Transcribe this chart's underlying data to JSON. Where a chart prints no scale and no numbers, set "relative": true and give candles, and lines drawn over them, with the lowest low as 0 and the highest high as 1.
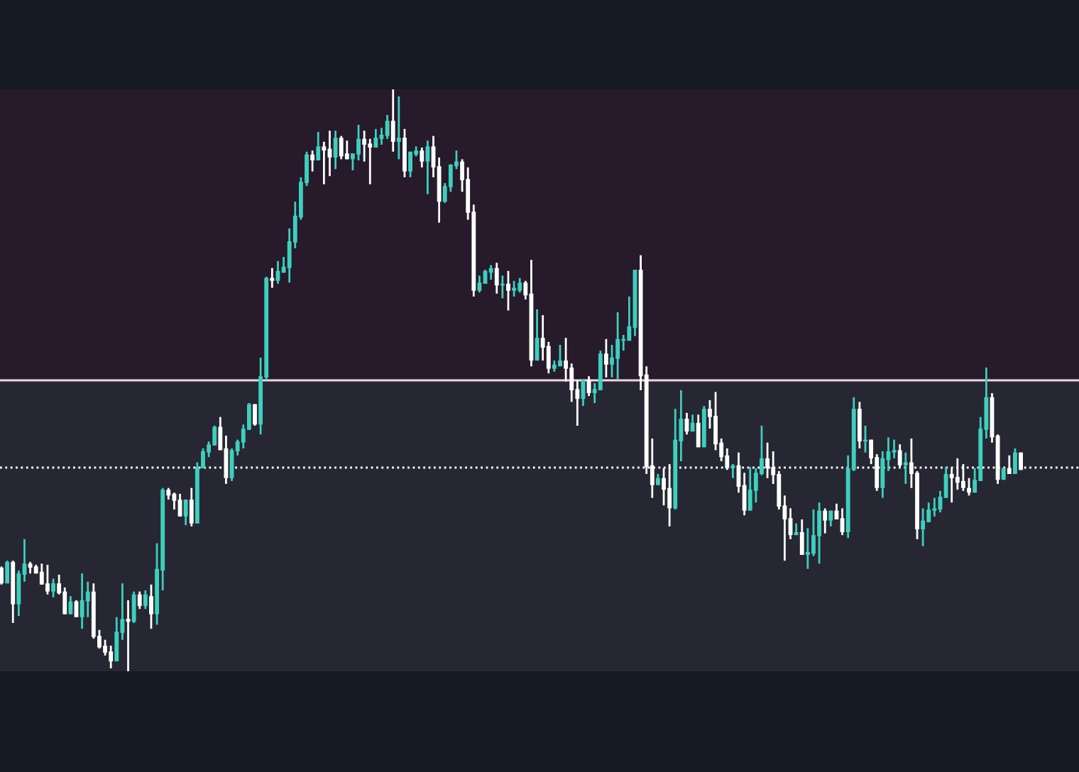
{
  "chart_data": {
    "type": "candlestick",
    "relative": true,
    "categories": [
      null,
      null,
      null,
      null,
      null,
      null,
      null,
      null,
      null,
      null,
      null,
      null,
      null,
      null,
      null,
      null,
      null,
      null,
      null,
      null,
      null,
      null,
      null,
      null,
      null,
      null,
      null,
      null,
      null,
      null,
      null,
      null,
      null,
      null,
      null,
      null,
      null,
      null,
      null,
      null,
      null,
      null,
      null,
      null,
      null,
      null,
      null,
      null,
      null,
      null,
      null,
      null,
      null,
      null,
      null,
      null,
      null,
      null,
      null,
      null,
      null,
      null,
      null,
      null,
      null,
      null,
      null,
      null,
      null,
      null,
      null,
      null,
      null,
      null,
      null,
      null,
      null,
      null,
      null,
      null,
      null,
      null,
      null,
      null,
      null,
      null,
      null,
      null,
      null,
      null,
      null,
      null,
      null,
      null,
      null,
      null,
      null,
      null,
      null,
      null,
      null,
      null,
      null,
      null,
      null,
      null,
      null,
      null,
      null,
      null,
      null,
      null,
      null,
      null,
      null,
      null,
      null,
      null,
      null,
      null,
      null,
      null,
      null,
      null,
      null,
      null,
      null,
      null,
      null,
      null,
      null,
      null,
      null,
      null,
      null,
      null,
      null,
      null,
      null,
      null,
      null,
      null,
      null,
      null,
      null,
      null,
      null,
      null,
      null,
      null,
      null,
      null,
      null,
      null,
      null,
      null,
      null,
      null,
      null,
      null,
      null,
      null,
      null,
      null,
      null,
      null,
      null,
      null,
      null,
      null,
      null,
      null,
      null,
      null,
      null,
      null,
      null,
      null
    ],
    "ohlc": [
      [
        0.178,
        0.18,
        0.149,
        0.151
      ],
      [
        0.151,
        0.19,
        0.151,
        0.188
      ],
      [
        0.188,
        0.19,
        0.083,
        0.115
      ],
      [
        0.115,
        0.173,
        0.095,
        0.168
      ],
      [
        0.166,
        0.227,
        0.154,
        0.185
      ],
      [
        0.185,
        0.188,
        0.168,
        0.178
      ],
      [
        0.18,
        0.183,
        0.168,
        0.168
      ],
      [
        0.171,
        0.185,
        0.149,
        0.149
      ],
      [
        0.151,
        0.183,
        0.132,
        0.137
      ],
      [
        0.137,
        0.159,
        0.127,
        0.151
      ],
      [
        0.151,
        0.166,
        0.132,
        0.134
      ],
      [
        0.137,
        0.144,
        0.098,
        0.098
      ],
      [
        0.098,
        0.129,
        0.098,
        0.12
      ],
      [
        0.12,
        0.122,
        0.093,
        0.093
      ],
      [
        0.093,
        0.168,
        0.073,
        0.122
      ],
      [
        0.12,
        0.154,
        0.093,
        0.137
      ],
      [
        0.137,
        0.151,
        0.056,
        0.059
      ],
      [
        0.061,
        0.071,
        0.039,
        0.041
      ],
      [
        0.044,
        0.054,
        0.027,
        0.032
      ],
      [
        0.034,
        0.044,
        0.005,
        0.017
      ],
      [
        0.017,
        0.093,
        0.017,
        0.068
      ],
      [
        0.066,
        0.151,
        0.054,
        0.09
      ],
      [
        0.09,
        0.122,
        0.0,
        0.085
      ],
      [
        0.085,
        0.137,
        0.083,
        0.132
      ],
      [
        0.132,
        0.137,
        0.107,
        0.112
      ],
      [
        0.112,
        0.139,
        0.107,
        0.132
      ],
      [
        0.129,
        0.149,
        0.073,
        0.098
      ],
      [
        0.098,
        0.22,
        0.08,
        0.176
      ],
      [
        0.173,
        0.315,
        0.139,
        0.312
      ],
      [
        0.312,
        0.315,
        0.295,
        0.302
      ],
      [
        0.305,
        0.307,
        0.278,
        0.293
      ],
      [
        0.295,
        0.305,
        0.266,
        0.266
      ],
      [
        0.266,
        0.295,
        0.251,
        0.295
      ],
      [
        0.295,
        0.315,
        0.249,
        0.254
      ],
      [
        0.254,
        0.359,
        0.254,
        0.351
      ],
      [
        0.349,
        0.383,
        0.349,
        0.378
      ],
      [
        0.376,
        0.395,
        0.368,
        0.39
      ],
      [
        0.388,
        0.422,
        0.388,
        0.42
      ],
      [
        0.42,
        0.437,
        0.38,
        0.38
      ],
      [
        0.383,
        0.405,
        0.322,
        0.332
      ],
      [
        0.332,
        0.383,
        0.327,
        0.38
      ],
      [
        0.378,
        0.398,
        0.371,
        0.395
      ],
      [
        0.393,
        0.424,
        0.383,
        0.417
      ],
      [
        0.415,
        0.461,
        0.415,
        0.459
      ],
      [
        0.459,
        0.459,
        0.422,
        0.424
      ],
      [
        0.424,
        0.539,
        0.407,
        0.507
      ],
      [
        0.505,
        0.678,
        0.502,
        0.676
      ],
      [
        0.676,
        0.693,
        0.659,
        0.671
      ],
      [
        0.671,
        0.705,
        0.666,
        0.688
      ],
      [
        0.685,
        0.712,
        0.685,
        0.695
      ],
      [
        0.693,
        0.761,
        0.668,
        0.739
      ],
      [
        0.737,
        0.807,
        0.727,
        0.783
      ],
      [
        0.78,
        0.849,
        0.776,
        0.841
      ],
      [
        0.839,
        0.893,
        0.834,
        0.888
      ],
      [
        0.888,
        0.895,
        0.859,
        0.878
      ],
      [
        0.878,
        0.927,
        0.878,
        0.902
      ],
      [
        0.902,
        0.91,
        0.837,
        0.895
      ],
      [
        0.898,
        0.929,
        0.851,
        0.883
      ],
      [
        0.883,
        0.929,
        0.863,
        0.917
      ],
      [
        0.917,
        0.92,
        0.88,
        0.885
      ],
      [
        0.89,
        0.912,
        0.88,
        0.88
      ],
      [
        0.88,
        0.89,
        0.861,
        0.89
      ],
      [
        0.888,
        0.939,
        0.878,
        0.915
      ],
      [
        0.915,
        0.929,
        0.876,
        0.905
      ],
      [
        0.907,
        0.915,
        0.837,
        0.9
      ],
      [
        0.9,
        0.932,
        0.9,
        0.917
      ],
      [
        0.915,
        0.934,
        0.905,
        0.922
      ],
      [
        0.92,
        0.956,
        0.915,
        0.946
      ],
      [
        0.946,
        1.0,
        0.893,
        0.91
      ],
      [
        0.91,
        0.988,
        0.88,
        0.917
      ],
      [
        0.917,
        0.932,
        0.849,
        0.859
      ],
      [
        0.859,
        0.893,
        0.849,
        0.893
      ],
      [
        0.888,
        0.902,
        0.885,
        0.895
      ],
      [
        0.895,
        0.9,
        0.866,
        0.876
      ],
      [
        0.876,
        0.912,
        0.82,
        0.902
      ],
      [
        0.902,
        0.92,
        0.849,
        0.866
      ],
      [
        0.868,
        0.883,
        0.771,
        0.807
      ],
      [
        0.807,
        0.839,
        0.805,
        0.834
      ],
      [
        0.832,
        0.871,
        0.824,
        0.871
      ],
      [
        0.868,
        0.895,
        0.863,
        0.876
      ],
      [
        0.876,
        0.88,
        0.824,
        0.844
      ],
      [
        0.846,
        0.866,
        0.776,
        0.788
      ],
      [
        0.79,
        0.802,
        0.644,
        0.654
      ],
      [
        0.654,
        0.68,
        0.651,
        0.668
      ],
      [
        0.666,
        0.69,
        0.666,
        0.688
      ],
      [
        0.685,
        0.698,
        0.673,
        0.693
      ],
      [
        0.693,
        0.702,
        0.649,
        0.663
      ],
      [
        0.663,
        0.68,
        0.641,
        0.666
      ],
      [
        0.666,
        0.688,
        0.62,
        0.654
      ],
      [
        0.654,
        0.671,
        0.644,
        0.659
      ],
      [
        0.654,
        0.676,
        0.651,
        0.668
      ],
      [
        0.668,
        0.671,
        0.639,
        0.646
      ],
      [
        0.649,
        0.707,
        0.524,
        0.534
      ],
      [
        0.534,
        0.622,
        0.534,
        0.573
      ],
      [
        0.573,
        0.612,
        0.534,
        0.556
      ],
      [
        0.559,
        0.566,
        0.512,
        0.52
      ],
      [
        0.52,
        0.534,
        0.515,
        0.527
      ],
      [
        0.524,
        0.561,
        0.524,
        0.534
      ],
      [
        0.534,
        0.573,
        0.498,
        0.52
      ],
      [
        0.522,
        0.529,
        0.463,
        0.483
      ],
      [
        0.485,
        0.5,
        0.422,
        0.468
      ],
      [
        0.468,
        0.502,
        0.456,
        0.5
      ],
      [
        0.5,
        0.507,
        0.473,
        0.478
      ],
      [
        0.478,
        0.495,
        0.461,
        0.485
      ],
      [
        0.483,
        0.551,
        0.483,
        0.546
      ],
      [
        0.546,
        0.571,
        0.505,
        0.527
      ],
      [
        0.527,
        0.561,
        0.505,
        0.539
      ],
      [
        0.537,
        0.617,
        0.502,
        0.571
      ],
      [
        0.568,
        0.578,
        0.551,
        0.571
      ],
      [
        0.568,
        0.644,
        0.568,
        0.593
      ],
      [
        0.59,
        0.69,
        0.576,
        0.69
      ],
      [
        0.69,
        0.715,
        0.483,
        0.507
      ],
      [
        0.51,
        0.524,
        0.339,
        0.351
      ],
      [
        0.354,
        0.4,
        0.298,
        0.32
      ],
      [
        0.32,
        0.339,
        0.32,
        0.332
      ],
      [
        0.332,
        0.349,
        0.285,
        0.312
      ],
      [
        0.315,
        0.356,
        0.249,
        0.28
      ],
      [
        0.28,
        0.451,
        0.278,
        0.398
      ],
      [
        0.395,
        0.483,
        0.361,
        0.434
      ],
      [
        0.434,
        0.444,
        0.407,
        0.412
      ],
      [
        0.412,
        0.441,
        0.412,
        0.427
      ],
      [
        0.427,
        0.441,
        0.385,
        0.385
      ],
      [
        0.385,
        0.456,
        0.385,
        0.451
      ],
      [
        0.451,
        0.466,
        0.417,
        0.437
      ],
      [
        0.439,
        0.48,
        0.38,
        0.39
      ],
      [
        0.393,
        0.4,
        0.361,
        0.368
      ],
      [
        0.371,
        0.383,
        0.346,
        0.349
      ],
      [
        0.349,
        0.356,
        0.332,
        0.354
      ],
      [
        0.354,
        0.376,
        0.307,
        0.317
      ],
      [
        0.32,
        0.341,
        0.268,
        0.276
      ],
      [
        0.276,
        0.351,
        0.276,
        0.312
      ],
      [
        0.31,
        0.349,
        0.29,
        0.341
      ],
      [
        0.339,
        0.422,
        0.337,
        0.366
      ],
      [
        0.366,
        0.393,
        0.332,
        0.349
      ],
      [
        0.351,
        0.378,
        0.322,
        0.337
      ],
      [
        0.339,
        0.344,
        0.278,
        0.283
      ],
      [
        0.285,
        0.302,
        0.19,
        0.261
      ],
      [
        0.263,
        0.28,
        0.227,
        0.234
      ],
      [
        0.234,
        0.254,
        0.234,
        0.239
      ],
      [
        0.239,
        0.261,
        0.2,
        0.2
      ],
      [
        0.2,
        0.246,
        0.176,
        0.205
      ],
      [
        0.202,
        0.278,
        0.198,
        0.234
      ],
      [
        0.232,
        0.29,
        0.185,
        0.276
      ],
      [
        0.276,
        0.28,
        0.237,
        0.259
      ],
      [
        0.259,
        0.276,
        0.249,
        0.276
      ],
      [
        0.276,
        0.288,
        0.261,
        0.261
      ],
      [
        0.263,
        0.28,
        0.234,
        0.239
      ],
      [
        0.239,
        0.371,
        0.229,
        0.349
      ],
      [
        0.346,
        0.471,
        0.344,
        0.451
      ],
      [
        0.451,
        0.463,
        0.383,
        0.395
      ],
      [
        0.395,
        0.422,
        0.376,
        0.398
      ],
      [
        0.398,
        0.398,
        0.356,
        0.366
      ],
      [
        0.368,
        0.373,
        0.31,
        0.315
      ],
      [
        0.315,
        0.378,
        0.298,
        0.366
      ],
      [
        0.363,
        0.402,
        0.344,
        0.378
      ],
      [
        0.376,
        0.398,
        0.366,
        0.38
      ],
      [
        0.38,
        0.39,
        0.351,
        0.354
      ],
      [
        0.354,
        0.376,
        0.322,
        0.359
      ],
      [
        0.359,
        0.4,
        0.315,
        0.339
      ],
      [
        0.341,
        0.344,
        0.227,
        0.244
      ],
      [
        0.244,
        0.28,
        0.215,
        0.259
      ],
      [
        0.256,
        0.29,
        0.256,
        0.278
      ],
      [
        0.276,
        0.298,
        0.266,
        0.28
      ],
      [
        0.278,
        0.31,
        0.273,
        0.3
      ],
      [
        0.298,
        0.351,
        0.298,
        0.339
      ],
      [
        0.339,
        0.349,
        0.29,
        0.332
      ],
      [
        0.334,
        0.366,
        0.312,
        0.324
      ],
      [
        0.327,
        0.356,
        0.31,
        0.315
      ],
      [
        0.315,
        0.332,
        0.302,
        0.307
      ],
      [
        0.307,
        0.349,
        0.307,
        0.329
      ],
      [
        0.327,
        0.437,
        0.327,
        0.417
      ],
      [
        0.415,
        0.522,
        0.4,
        0.471
      ],
      [
        0.471,
        0.478,
        0.393,
        0.402
      ],
      [
        0.405,
        0.407,
        0.322,
        0.329
      ],
      [
        0.329,
        0.349,
        0.329,
        0.349
      ],
      [
        0.349,
        0.371,
        0.339,
        0.339
      ],
      [
        0.339,
        0.383,
        0.339,
        0.376
      ],
      [
        0.376,
        0.376,
        0.346,
        0.346
      ]
    ],
    "colors": [
      "#ffffff",
      "#3ecfbe",
      "#ffffff",
      "#3ecfbe",
      "#3ecfbe",
      "#ffffff",
      "#ffffff",
      "#ffffff",
      "#ffffff",
      "#3ecfbe",
      "#ffffff",
      "#ffffff",
      "#3ecfbe",
      "#ffffff",
      "#3ecfbe",
      "#3ecfbe",
      "#ffffff",
      "#ffffff",
      "#ffffff",
      "#ffffff",
      "#3ecfbe",
      "#3ecfbe",
      "#ffffff",
      "#3ecfbe",
      "#ffffff",
      "#3ecfbe",
      "#ffffff",
      "#3ecfbe",
      "#3ecfbe",
      "#ffffff",
      "#ffffff",
      "#ffffff",
      "#3ecfbe",
      "#ffffff",
      "#3ecfbe",
      "#3ecfbe",
      "#3ecfbe",
      "#3ecfbe",
      "#ffffff",
      "#ffffff",
      "#3ecfbe",
      "#3ecfbe",
      "#3ecfbe",
      "#3ecfbe",
      "#ffffff",
      "#3ecfbe",
      "#3ecfbe",
      "#ffffff",
      "#3ecfbe",
      "#3ecfbe",
      "#3ecfbe",
      "#3ecfbe",
      "#3ecfbe",
      "#3ecfbe",
      "#ffffff",
      "#3ecfbe",
      "#ffffff",
      "#ffffff",
      "#3ecfbe",
      "#ffffff",
      "#ffffff",
      "#3ecfbe",
      "#3ecfbe",
      "#ffffff",
      "#ffffff",
      "#3ecfbe",
      "#3ecfbe",
      "#3ecfbe",
      "#ffffff",
      "#3ecfbe",
      "#ffffff",
      "#3ecfbe",
      "#3ecfbe",
      "#ffffff",
      "#3ecfbe",
      "#ffffff",
      "#ffffff",
      "#3ecfbe",
      "#3ecfbe",
      "#3ecfbe",
      "#ffffff",
      "#ffffff",
      "#ffffff",
      "#3ecfbe",
      "#3ecfbe",
      "#3ecfbe",
      "#ffffff",
      "#3ecfbe",
      "#ffffff",
      "#3ecfbe",
      "#3ecfbe",
      "#ffffff",
      "#ffffff",
      "#3ecfbe",
      "#ffffff",
      "#ffffff",
      "#3ecfbe",
      "#3ecfbe",
      "#ffffff",
      "#ffffff",
      "#ffffff",
      "#3ecfbe",
      "#ffffff",
      "#3ecfbe",
      "#3ecfbe",
      "#ffffff",
      "#3ecfbe",
      "#3ecfbe",
      "#3ecfbe",
      "#3ecfbe",
      "#3ecfbe",
      "#ffffff",
      "#ffffff",
      "#ffffff",
      "#3ecfbe",
      "#ffffff",
      "#ffffff",
      "#3ecfbe",
      "#3ecfbe",
      "#ffffff",
      "#3ecfbe",
      "#ffffff",
      "#3ecfbe",
      "#ffffff",
      "#ffffff",
      "#ffffff",
      "#ffffff",
      "#3ecfbe",
      "#ffffff",
      "#ffffff",
      "#3ecfbe",
      "#3ecfbe",
      "#3ecfbe",
      "#ffffff",
      "#ffffff",
      "#ffffff",
      "#ffffff",
      "#ffffff",
      "#3ecfbe",
      "#ffffff",
      "#3ecfbe",
      "#3ecfbe",
      "#3ecfbe",
      "#ffffff",
      "#3ecfbe",
      "#ffffff",
      "#ffffff",
      "#3ecfbe",
      "#3ecfbe",
      "#ffffff",
      "#3ecfbe",
      "#ffffff",
      "#ffffff",
      "#3ecfbe",
      "#3ecfbe",
      "#3ecfbe",
      "#ffffff",
      "#3ecfbe",
      "#ffffff",
      "#ffffff",
      "#3ecfbe",
      "#3ecfbe",
      "#3ecfbe",
      "#3ecfbe",
      "#3ecfbe",
      "#ffffff",
      "#ffffff",
      "#ffffff",
      "#ffffff",
      "#3ecfbe",
      "#3ecfbe",
      "#3ecfbe",
      "#ffffff",
      "#ffffff",
      "#3ecfbe",
      "#ffffff",
      "#3ecfbe",
      "#ffffff"
    ],
    "bands": [
      {
        "axis": "y",
        "from": 0.5,
        "to": 1,
        "color": "#261a2b"
      },
      {
        "axis": "y",
        "from": 0,
        "to": 0.5,
        "color": "#272733"
      }
    ],
    "ref_lines": [
      {
        "axis": "y",
        "value": 0.5,
        "color": "#ecd6e0",
        "line_style": "solid"
      },
      {
        "axis": "y",
        "value": 0.35,
        "color": "#ffffff",
        "line_style": "dotted"
      }
    ],
    "legend": false
  }
}
